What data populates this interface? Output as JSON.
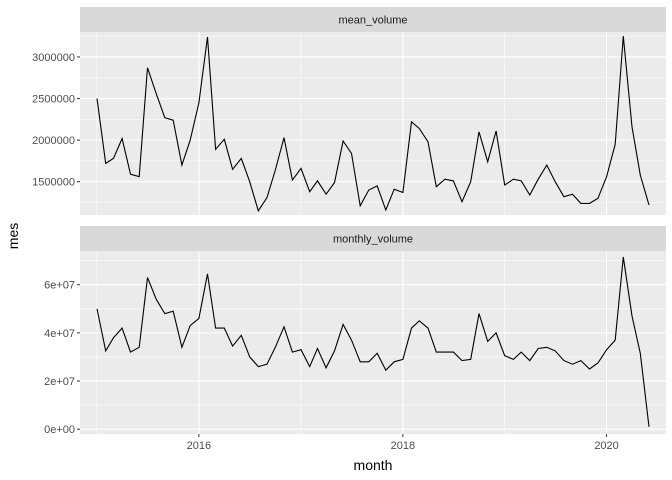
{
  "chart_data": {
    "type": "line",
    "facet_layout": "vertical",
    "xlabel": "month",
    "ylabel": "mes",
    "x_ticks": [
      "2016",
      "2018",
      "2020"
    ],
    "x_range": [
      "2014-11-01",
      "2020-08-01"
    ],
    "x_dates": [
      "2015-01",
      "2015-02",
      "2015-03",
      "2015-04",
      "2015-05",
      "2015-06",
      "2015-07",
      "2015-08",
      "2015-09",
      "2015-10",
      "2015-11",
      "2015-12",
      "2016-01",
      "2016-02",
      "2016-03",
      "2016-04",
      "2016-05",
      "2016-06",
      "2016-07",
      "2016-08",
      "2016-09",
      "2016-10",
      "2016-11",
      "2016-12",
      "2017-01",
      "2017-02",
      "2017-03",
      "2017-04",
      "2017-05",
      "2017-06",
      "2017-07",
      "2017-08",
      "2017-09",
      "2017-10",
      "2017-11",
      "2017-12",
      "2018-01",
      "2018-02",
      "2018-03",
      "2018-04",
      "2018-05",
      "2018-06",
      "2018-07",
      "2018-08",
      "2018-09",
      "2018-10",
      "2018-11",
      "2018-12",
      "2019-01",
      "2019-02",
      "2019-03",
      "2019-04",
      "2019-05",
      "2019-06",
      "2019-07",
      "2019-08",
      "2019-09",
      "2019-10",
      "2019-11",
      "2019-12",
      "2020-01",
      "2020-02",
      "2020-03",
      "2020-04",
      "2020-05",
      "2020-06"
    ],
    "line_color": "#000000",
    "panel_background": "#ebebeb",
    "strip_background": "#d9d9d9",
    "grid": true,
    "panels": [
      {
        "strip": "mean_volume",
        "ylim": [
          1100000,
          3300000
        ],
        "y_ticks": [
          "1500000",
          "2000000",
          "2500000",
          "3000000"
        ],
        "y_tick_values": [
          1500000,
          2000000,
          2500000,
          3000000
        ],
        "values": [
          2500000,
          1720000,
          1780000,
          2020000,
          1590000,
          1560000,
          2870000,
          2560000,
          2270000,
          2240000,
          1700000,
          2000000,
          2450000,
          3240000,
          1890000,
          2010000,
          1650000,
          1780000,
          1500000,
          1150000,
          1310000,
          1640000,
          2030000,
          1520000,
          1660000,
          1380000,
          1510000,
          1350000,
          1490000,
          1990000,
          1840000,
          1210000,
          1400000,
          1450000,
          1160000,
          1410000,
          1370000,
          2220000,
          2140000,
          1980000,
          1440000,
          1530000,
          1510000,
          1260000,
          1500000,
          2100000,
          1740000,
          2110000,
          1460000,
          1530000,
          1510000,
          1340000,
          1530000,
          1700000,
          1500000,
          1320000,
          1350000,
          1240000,
          1240000,
          1300000,
          1560000,
          1950000,
          3250000,
          2160000,
          1580000,
          1220000
        ]
      },
      {
        "strip": "monthly_volume",
        "ylim": [
          -2000000,
          74000000
        ],
        "y_ticks": [
          "0e+00",
          "2e+07",
          "4e+07",
          "6e+07"
        ],
        "y_tick_values": [
          0,
          20000000,
          40000000,
          60000000
        ],
        "values": [
          50000000,
          32500000,
          38000000,
          42000000,
          32000000,
          34000000,
          63000000,
          54000000,
          48000000,
          49000000,
          34000000,
          43000000,
          46000000,
          64500000,
          42000000,
          42000000,
          34500000,
          39000000,
          30000000,
          26000000,
          27000000,
          34000000,
          42500000,
          32000000,
          33000000,
          26000000,
          33500000,
          25500000,
          32500000,
          43500000,
          37000000,
          28000000,
          28000000,
          31500000,
          24500000,
          28000000,
          29000000,
          42000000,
          45000000,
          42000000,
          32000000,
          32000000,
          32000000,
          28500000,
          29000000,
          48000000,
          36500000,
          40000000,
          30500000,
          29000000,
          32000000,
          28500000,
          33500000,
          34000000,
          32500000,
          28500000,
          27000000,
          28500000,
          25000000,
          27500000,
          33000000,
          37000000,
          71500000,
          47000000,
          31500000,
          1000000
        ]
      }
    ]
  }
}
